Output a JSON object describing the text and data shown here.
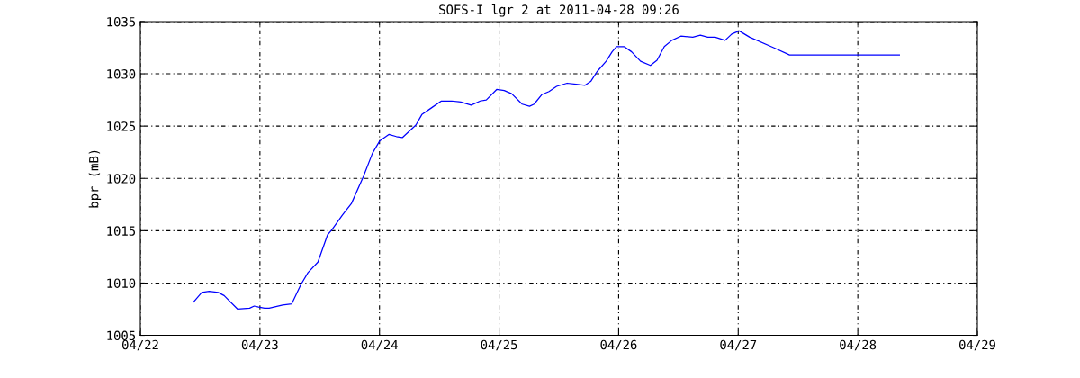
{
  "chart_data": {
    "type": "line",
    "title": "SOFS-I lgr 2 at 2011-04-28 09:26",
    "ylabel": "bpr (mB)",
    "xlim": [
      "2011-04-22",
      "2011-04-29"
    ],
    "xticks": [
      {
        "value": "2011-04-22",
        "label": "04/22"
      },
      {
        "value": "2011-04-23",
        "label": "04/23"
      },
      {
        "value": "2011-04-24",
        "label": "04/24"
      },
      {
        "value": "2011-04-25",
        "label": "04/25"
      },
      {
        "value": "2011-04-26",
        "label": "04/26"
      },
      {
        "value": "2011-04-27",
        "label": "04/27"
      },
      {
        "value": "2011-04-28",
        "label": "04/28"
      },
      {
        "value": "2011-04-29",
        "label": "04/29"
      }
    ],
    "ylim": [
      1005,
      1035
    ],
    "yticks": [
      1005,
      1010,
      1015,
      1020,
      1025,
      1030,
      1035
    ],
    "grid": true,
    "line_style": "solid",
    "marker": "none",
    "series": [
      {
        "color": "#0000ff",
        "x": [
          "2011-04-22T10:42",
          "2011-04-22T12:20",
          "2011-04-22T13:49",
          "2011-04-22T15:37",
          "2011-04-22T16:49",
          "2011-04-22T19:32",
          "2011-04-22T21:56",
          "2011-04-22T22:51",
          "2011-04-22T23:44",
          "2011-04-23T00:56",
          "2011-04-23T01:51",
          "2011-04-23T04:34",
          "2011-04-23T06:22",
          "2011-04-23T08:10",
          "2011-04-23T09:39",
          "2011-04-23T11:38",
          "2011-04-23T13:34",
          "2011-04-23T14:28",
          "2011-04-23T16:34",
          "2011-04-23T18:22",
          "2011-04-23T20:47",
          "2011-04-23T22:35",
          "2011-04-24T00:04",
          "2011-04-24T01:52",
          "2011-04-24T03:23",
          "2011-04-24T04:35",
          "2011-04-24T07:18",
          "2011-04-24T08:30",
          "2011-04-24T10:18",
          "2011-04-24T12:25",
          "2011-04-24T14:30",
          "2011-04-24T16:19",
          "2011-04-24T18:24",
          "2011-04-24T20:14",
          "2011-04-24T21:26",
          "2011-04-24T23:31",
          "2011-04-25T01:02",
          "2011-04-25T02:31",
          "2011-04-25T04:38",
          "2011-04-25T06:07",
          "2011-04-25T07:02",
          "2011-04-25T08:33",
          "2011-04-25T10:02",
          "2011-04-25T11:33",
          "2011-04-25T13:39",
          "2011-04-25T15:27",
          "2011-04-25T17:15",
          "2011-04-25T18:27",
          "2011-04-25T19:39",
          "2011-04-25T21:29",
          "2011-04-25T22:41",
          "2011-04-25T23:34",
          "2011-04-26T01:05",
          "2011-04-26T02:36",
          "2011-04-26T04:24",
          "2011-04-26T06:23",
          "2011-04-26T07:42",
          "2011-04-26T09:10",
          "2011-04-26T10:41",
          "2011-04-26T12:29",
          "2011-04-26T14:53",
          "2011-04-26T16:24",
          "2011-04-26T17:53",
          "2011-04-26T19:23",
          "2011-04-26T21:22",
          "2011-04-26T22:42",
          "2011-04-27T00:12",
          "2011-04-27T02:18",
          "2011-04-27T07:06",
          "2011-04-27T10:18",
          "2011-04-28T08:21"
        ],
        "values": [
          1008.2,
          1009.1,
          1009.2,
          1009.1,
          1008.8,
          1007.5,
          1007.6,
          1007.8,
          1007.7,
          1007.6,
          1007.6,
          1007.9,
          1008.0,
          1009.8,
          1011.0,
          1012.0,
          1014.6,
          1015.1,
          1016.5,
          1017.6,
          1020.2,
          1022.4,
          1023.6,
          1024.2,
          1024.0,
          1023.9,
          1025.1,
          1026.1,
          1026.7,
          1027.4,
          1027.4,
          1027.3,
          1027.0,
          1027.4,
          1027.5,
          1028.5,
          1028.4,
          1028.1,
          1027.1,
          1026.9,
          1027.1,
          1028.0,
          1028.3,
          1028.8,
          1029.1,
          1029.0,
          1028.9,
          1029.3,
          1030.2,
          1031.2,
          1032.1,
          1032.6,
          1032.6,
          1032.1,
          1031.2,
          1030.8,
          1031.3,
          1032.6,
          1033.2,
          1033.6,
          1033.5,
          1033.7,
          1033.5,
          1033.5,
          1033.2,
          1033.8,
          1034.1,
          1033.5,
          1032.5,
          1031.8,
          1031.8
        ]
      }
    ]
  }
}
